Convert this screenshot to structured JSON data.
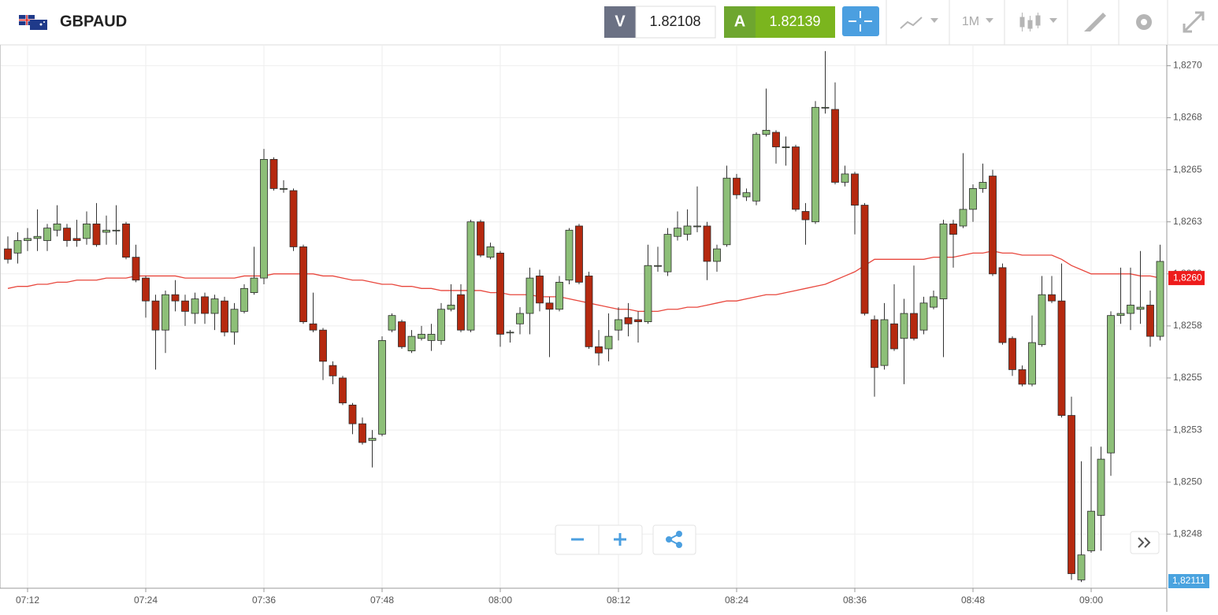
{
  "header": {
    "symbol": "GBPAUD",
    "sell_label": "V",
    "sell_price": "1.82108",
    "buy_label": "A",
    "buy_price": "1.82139",
    "timeframe": "1M"
  },
  "chart_data": {
    "type": "candlestick",
    "categories": [
      null,
      null,
      "07:12",
      null,
      null,
      null,
      null,
      null,
      null,
      null,
      null,
      null,
      null,
      null,
      "07:24",
      null,
      null,
      null,
      null,
      null,
      null,
      null,
      null,
      null,
      null,
      null,
      "07:36",
      null,
      null,
      null,
      null,
      null,
      null,
      null,
      null,
      null,
      null,
      null,
      "07:48",
      null,
      null,
      null,
      null,
      null,
      null,
      null,
      null,
      null,
      null,
      null,
      "08:00",
      null,
      null,
      null,
      null,
      null,
      null,
      null,
      null,
      null,
      null,
      null,
      "08:12",
      null,
      null,
      null,
      null,
      null,
      null,
      null,
      null,
      null,
      null,
      null,
      "08:24",
      null,
      null,
      null,
      null,
      null,
      null,
      null,
      null,
      null,
      null,
      null,
      "08:36",
      null,
      null,
      null,
      null,
      null,
      null,
      null,
      null,
      null,
      null,
      null,
      "08:48",
      null,
      null,
      null,
      null,
      null,
      null,
      null,
      null,
      null,
      null,
      null,
      "09:00",
      null,
      null,
      null,
      null,
      null,
      null,
      null
    ],
    "open": [
      1.82612,
      1.8261,
      1.82616,
      1.82617,
      1.82616,
      1.82621,
      1.82622,
      1.82617,
      1.82617,
      1.82624,
      1.8262,
      1.82621,
      1.82624,
      1.82608,
      1.82598,
      1.82587,
      1.82573,
      1.8259,
      1.82587,
      1.82581,
      1.82589,
      1.82581,
      1.82587,
      1.82572,
      1.82582,
      1.82591,
      1.82598,
      1.82655,
      1.82641,
      1.8264,
      1.82613,
      1.82576,
      1.82573,
      1.82556,
      1.8255,
      1.82537,
      1.82528,
      1.8252,
      1.82523,
      1.82573,
      1.82577,
      1.82563,
      1.82569,
      1.82568,
      1.82568,
      1.82583,
      1.8259,
      1.82573,
      1.82625,
      1.82608,
      1.8261,
      1.82572,
      1.82576,
      1.82581,
      1.82599,
      1.82586,
      1.82583,
      1.82597,
      1.82623,
      1.82599,
      1.82565,
      1.82564,
      1.82573,
      1.82579,
      1.82578,
      1.82577,
      1.82604,
      1.82601,
      1.82618,
      1.82619,
      1.82623,
      1.82623,
      1.82606,
      1.82614,
      1.82646,
      1.82637,
      1.82635,
      1.82667,
      1.82668,
      1.82661,
      1.82661,
      1.8263,
      1.82625,
      1.8268,
      1.82679,
      1.82644,
      1.82648,
      1.82633,
      1.82578,
      1.82556,
      1.82576,
      1.82569,
      1.82581,
      1.82573,
      1.82584,
      1.82588,
      1.82624,
      1.82623,
      1.82631,
      1.82641,
      1.82647,
      1.82603,
      1.82569,
      1.82554,
      1.82547,
      1.82566,
      1.8259,
      1.82587,
      1.82532,
      1.82453,
      1.82467,
      1.82484,
      1.82514,
      1.8258,
      1.82581,
      1.82583,
      1.82585,
      1.8257
    ],
    "high": [
      1.82618,
      1.8262,
      1.82622,
      1.82631,
      1.82624,
      1.82633,
      1.82624,
      1.82626,
      1.8263,
      1.82634,
      1.82628,
      1.82633,
      1.82625,
      1.82614,
      1.82599,
      1.8259,
      1.82592,
      1.82597,
      1.8259,
      1.82591,
      1.82591,
      1.8259,
      1.82589,
      1.82586,
      1.82595,
      1.82613,
      1.8266,
      1.82656,
      1.82645,
      1.82641,
      1.82614,
      1.82591,
      1.82574,
      1.82558,
      1.82551,
      1.82538,
      1.82531,
      1.82525,
      1.8257,
      1.82581,
      1.82578,
      1.82573,
      1.82575,
      1.82576,
      1.82586,
      1.82595,
      1.82595,
      1.82626,
      1.82626,
      1.82615,
      1.82611,
      1.82573,
      1.82584,
      1.82603,
      1.82602,
      1.82589,
      1.82599,
      1.82622,
      1.82624,
      1.82601,
      1.82573,
      1.82581,
      1.82584,
      1.82586,
      1.82582,
      1.82614,
      1.82613,
      1.82622,
      1.8263,
      1.82631,
      1.82642,
      1.82625,
      1.82614,
      1.82652,
      1.82648,
      1.82641,
      1.82668,
      1.82689,
      1.82669,
      1.82666,
      1.82662,
      1.82634,
      1.82683,
      1.82707,
      1.82692,
      1.82652,
      1.82649,
      1.82634,
      1.8258,
      1.82586,
      1.82595,
      1.82588,
      1.82604,
      1.82589,
      1.82592,
      1.82626,
      1.82626,
      1.82658,
      1.82643,
      1.82653,
      1.8265,
      1.82605,
      1.8257,
      1.82556,
      1.8258,
      1.82599,
      1.82599,
      1.82605,
      1.82541,
      1.8251,
      1.82517,
      1.82517,
      1.82582,
      1.82603,
      1.82603,
      1.82611,
      1.82592,
      1.82614
    ],
    "low": [
      1.82605,
      1.82605,
      1.82611,
      1.82611,
      1.82611,
      1.82618,
      1.82613,
      1.82613,
      1.82614,
      1.82613,
      1.82614,
      1.82614,
      1.82607,
      1.82596,
      1.82579,
      1.82554,
      1.82562,
      1.82582,
      1.82575,
      1.82576,
      1.82576,
      1.82573,
      1.8257,
      1.82566,
      1.82581,
      1.8259,
      1.82595,
      1.8264,
      1.82639,
      1.82611,
      1.82576,
      1.82572,
      1.82549,
      1.82547,
      1.82537,
      1.82523,
      1.82518,
      1.82507,
      1.82522,
      1.82572,
      1.82564,
      1.82562,
      1.82568,
      1.82563,
      1.82566,
      1.82582,
      1.82572,
      1.82572,
      1.82608,
      1.82607,
      1.82565,
      1.82567,
      1.82571,
      1.82571,
      1.82582,
      1.8256,
      1.82582,
      1.82595,
      1.82595,
      1.82564,
      1.82556,
      1.82558,
      1.82568,
      1.8257,
      1.82567,
      1.82576,
      1.82601,
      1.82599,
      1.82616,
      1.82616,
      1.8262,
      1.82597,
      1.82601,
      1.82613,
      1.82636,
      1.82635,
      1.82633,
      1.82666,
      1.82653,
      1.82652,
      1.8263,
      1.82614,
      1.82624,
      1.82677,
      1.82643,
      1.82642,
      1.82619,
      1.8258,
      1.82541,
      1.82554,
      1.82563,
      1.82547,
      1.82568,
      1.82571,
      1.82583,
      1.8256,
      1.82603,
      1.82622,
      1.82625,
      1.82639,
      1.82599,
      1.82566,
      1.82551,
      1.82546,
      1.82546,
      1.82565,
      1.82586,
      1.82531,
      1.82453,
      1.82452,
      1.82466,
      1.82467,
      1.82503,
      1.82576,
      1.82573,
      1.82576,
      1.82565,
      1.82568
    ],
    "close": [
      1.82607,
      1.82616,
      1.82617,
      1.82618,
      1.82622,
      1.82624,
      1.82616,
      1.82616,
      1.82624,
      1.82614,
      1.82621,
      1.82621,
      1.82608,
      1.82597,
      1.82587,
      1.82573,
      1.8259,
      1.82587,
      1.82582,
      1.82588,
      1.82581,
      1.82588,
      1.82572,
      1.82583,
      1.82593,
      1.82598,
      1.82655,
      1.82641,
      1.82641,
      1.82613,
      1.82577,
      1.82573,
      1.82558,
      1.82551,
      1.82538,
      1.82528,
      1.82519,
      1.82521,
      1.82568,
      1.8258,
      1.82565,
      1.8257,
      1.82571,
      1.82571,
      1.82583,
      1.82585,
      1.82573,
      1.82625,
      1.82609,
      1.82613,
      1.82571,
      1.82572,
      1.82581,
      1.82598,
      1.82586,
      1.82583,
      1.82596,
      1.82621,
      1.82596,
      1.82565,
      1.82562,
      1.8257,
      1.82578,
      1.82576,
      1.82577,
      1.82604,
      1.82604,
      1.82619,
      1.82622,
      1.82623,
      1.82623,
      1.82606,
      1.82612,
      1.82646,
      1.82638,
      1.82639,
      1.82667,
      1.82669,
      1.82661,
      1.82661,
      1.82631,
      1.82626,
      1.8268,
      1.8268,
      1.82644,
      1.82648,
      1.82633,
      1.82581,
      1.82555,
      1.82578,
      1.82564,
      1.82581,
      1.82569,
      1.82586,
      1.82589,
      1.82624,
      1.82619,
      1.82631,
      1.82641,
      1.82644,
      1.826,
      1.82567,
      1.82554,
      1.82547,
      1.82567,
      1.8259,
      1.82587,
      1.82532,
      1.82456,
      1.82465,
      1.82486,
      1.82511,
      1.8258,
      1.82581,
      1.82585,
      1.82584,
      1.8257,
      1.82606
    ],
    "up_color": "#8dbf78",
    "down_color": "#b5290f",
    "wick_color": "#333333",
    "moving_average": {
      "color": "#e8473d",
      "values": [
        1.82593,
        1.82594,
        1.82594,
        1.82595,
        1.82595,
        1.82596,
        1.82596,
        1.82597,
        1.82597,
        1.82597,
        1.82598,
        1.82598,
        1.82598,
        1.82599,
        1.82599,
        1.82599,
        1.82599,
        1.82599,
        1.82598,
        1.82598,
        1.82598,
        1.82598,
        1.82598,
        1.82598,
        1.82599,
        1.82599,
        1.82599,
        1.826,
        1.826,
        1.826,
        1.826,
        1.826,
        1.82599,
        1.82599,
        1.82598,
        1.82597,
        1.82597,
        1.82596,
        1.82595,
        1.82595,
        1.82594,
        1.82594,
        1.82593,
        1.82593,
        1.82592,
        1.82592,
        1.82592,
        1.82592,
        1.82592,
        1.82591,
        1.82591,
        1.8259,
        1.8259,
        1.8259,
        1.82589,
        1.82589,
        1.82589,
        1.82588,
        1.82587,
        1.82586,
        1.82585,
        1.82584,
        1.82583,
        1.82583,
        1.82582,
        1.82582,
        1.82582,
        1.82583,
        1.82583,
        1.82584,
        1.82584,
        1.82585,
        1.82586,
        1.82587,
        1.82587,
        1.82588,
        1.82589,
        1.8259,
        1.8259,
        1.82591,
        1.82592,
        1.82593,
        1.82594,
        1.82595,
        1.82597,
        1.82599,
        1.82601,
        1.82604,
        1.82607,
        1.82607,
        1.82607,
        1.82607,
        1.82607,
        1.82607,
        1.82608,
        1.82608,
        1.82608,
        1.82609,
        1.8261,
        1.8261,
        1.82611,
        1.8261,
        1.8261,
        1.82609,
        1.82609,
        1.82609,
        1.82609,
        1.82607,
        1.82604,
        1.82602,
        1.826,
        1.826,
        1.826,
        1.826,
        1.826,
        1.82599,
        1.82599,
        1.82598
      ]
    },
    "ma_label": "1,8260",
    "price_label": "1,82111",
    "ylim": [
      1.82449,
      1.8271
    ],
    "yticks": [
      {
        "value": 1.82475,
        "label": "1,8248"
      },
      {
        "value": 1.825,
        "label": "1,8250"
      },
      {
        "value": 1.82525,
        "label": "1,8253"
      },
      {
        "value": 1.8255,
        "label": "1,8255"
      },
      {
        "value": 1.82575,
        "label": "1,8258"
      },
      {
        "value": 1.826,
        "label": "1,8260"
      },
      {
        "value": 1.82625,
        "label": "1,8263"
      },
      {
        "value": 1.8265,
        "label": "1,8265"
      },
      {
        "value": 1.82675,
        "label": "1,8268"
      },
      {
        "value": 1.827,
        "label": "1,8270"
      }
    ],
    "grid": true
  }
}
